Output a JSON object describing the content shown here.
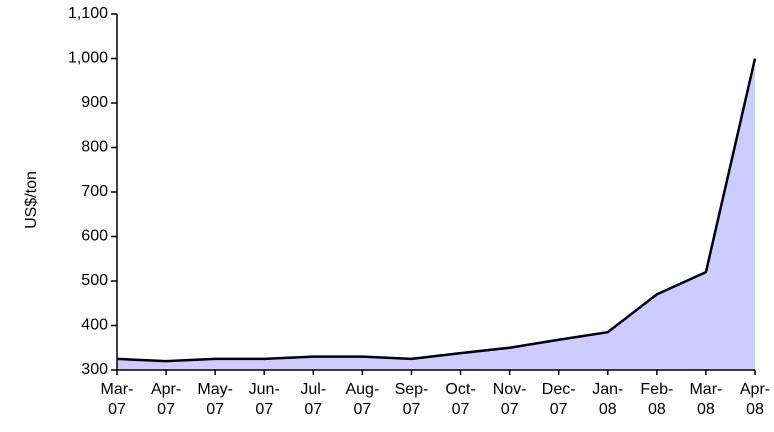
{
  "chart_data": {
    "type": "area",
    "y_label": "US$/ton",
    "categories": [
      "Mar-07",
      "Apr-07",
      "May-07",
      "Jun-07",
      "Jul-07",
      "Aug-07",
      "Sep-07",
      "Oct-07",
      "Nov-07",
      "Dec-07",
      "Jan-08",
      "Feb-08",
      "Mar-08",
      "Apr-08"
    ],
    "values": [
      325,
      320,
      325,
      325,
      330,
      330,
      325,
      338,
      350,
      368,
      385,
      470,
      520,
      1000
    ],
    "color": "#ccccff",
    "line_color": "#000000",
    "ylim": [
      300,
      1100
    ],
    "yticks": [
      300,
      400,
      500,
      600,
      700,
      800,
      900,
      {
        "value": 1000,
        "label": "1,000"
      },
      {
        "value": 1100,
        "label": "1,100"
      }
    ],
    "grid": false
  }
}
